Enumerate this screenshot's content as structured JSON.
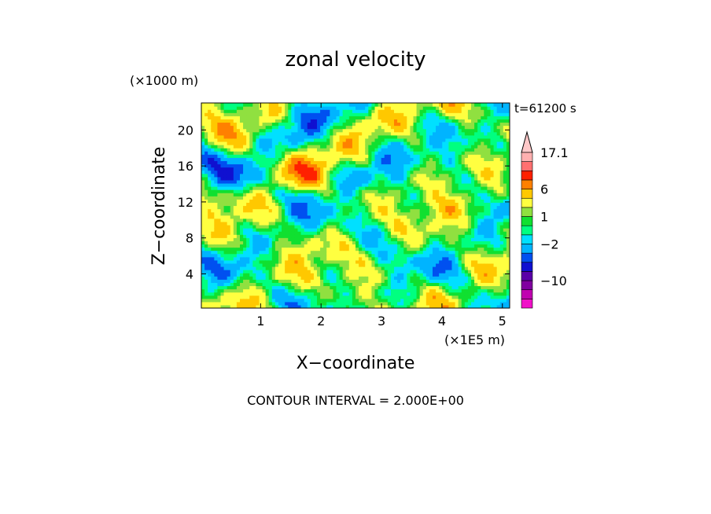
{
  "chart_data": {
    "type": "heatmap",
    "title": "zonal velocity",
    "xlabel": "X−coordinate",
    "ylabel": "Z−coordinate",
    "x_unit": "(×1E5 m)",
    "y_unit": "(×1000 m)",
    "time_label": "t=61200 s",
    "footer": "CONTOUR INTERVAL = 2.000E+00",
    "xlim": [
      0.02,
      5.12
    ],
    "ylim": [
      0.2,
      23.0
    ],
    "x_ticks": [
      "1",
      "2",
      "3",
      "4",
      "5"
    ],
    "y_ticks": [
      "4",
      "8",
      "12",
      "16",
      "20"
    ],
    "colorbar": {
      "labels": [
        "17.1",
        "6",
        "1",
        "−2",
        "−10"
      ],
      "levels": [
        -16,
        -14,
        -12,
        -10,
        -8,
        -6,
        -4,
        -2,
        -1,
        0,
        1,
        2,
        4,
        6,
        8,
        10,
        12,
        17.1
      ],
      "colors": [
        "#f010c8",
        "#c000b0",
        "#8000a0",
        "#5a00a8",
        "#1010d0",
        "#0050f0",
        "#00b4ff",
        "#00e0ff",
        "#00ff80",
        "#10e030",
        "#90e040",
        "#ffff40",
        "#ffc800",
        "#ff8000",
        "#ff2000",
        "#ff7070",
        "#ffb0b0",
        "#ffc8c8"
      ]
    }
  }
}
